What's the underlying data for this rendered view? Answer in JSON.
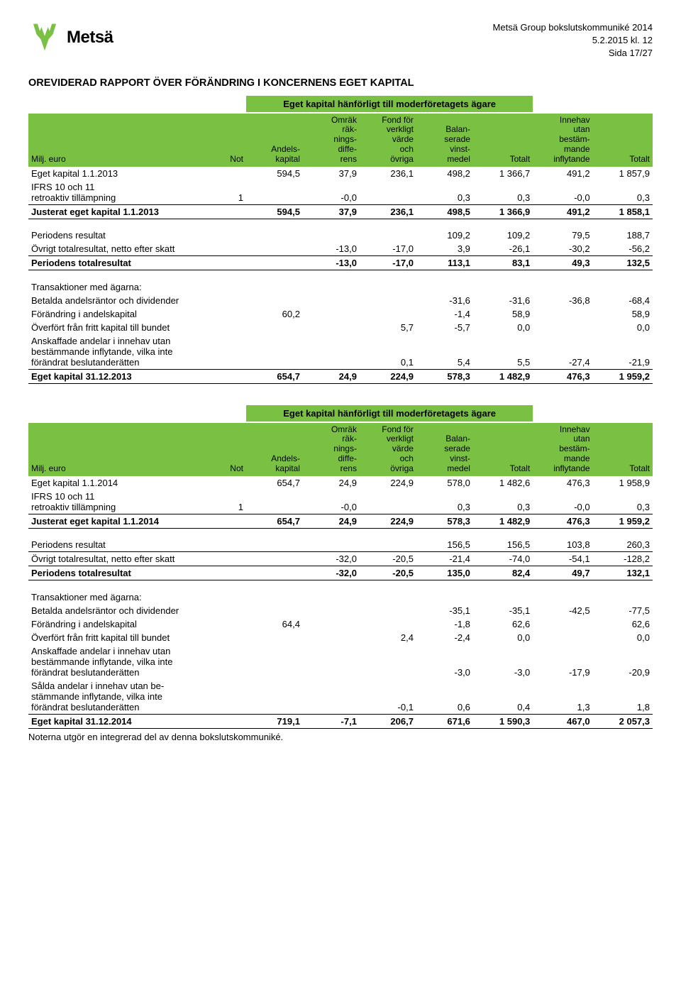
{
  "brand": {
    "name": "Metsä",
    "logo_color": "#7ac143"
  },
  "header": {
    "line1": "Metsä Group bokslutskommuniké 2014",
    "line2": "5.2.2015 kl. 12",
    "line3": "Sida 17/27"
  },
  "title": "OREVIDERAD RAPPORT ÖVER FÖRÄNDRING I KONCERNENS EGET KAPITAL",
  "group_heading": "Eget kapital hänförligt till moderföretagets ägare",
  "columns": {
    "label": "Milj. euro",
    "not": "Not",
    "c1": "Andels-\nkapital",
    "c2": "Omräk\nräk-\nnings-\ndiffe-\nrens",
    "c3": "Fond för\nverkligt\nvärde\noch\növriga",
    "c4": "Balan-\nserade\nvinst-\nmedel",
    "c5": "Totalt",
    "c6": "Innehav\nutan\nbestäm-\nmande\ninflytande",
    "c7": "Totalt"
  },
  "colors": {
    "header_bg": "#7ac143",
    "rule": "#000000",
    "text": "#000000"
  },
  "table2013": {
    "rows": [
      {
        "label": "Eget kapital 1.1.2013",
        "not": "",
        "v": [
          "594,5",
          "37,9",
          "236,1",
          "498,2",
          "1 366,7",
          "491,2",
          "1 857,9"
        ],
        "style": "plain"
      },
      {
        "label": "IFRS 10 och 11\nretroaktiv tillämpning",
        "not": "1",
        "v": [
          "",
          "-0,0",
          "",
          "0,3",
          "0,3",
          "-0,0",
          "0,3"
        ],
        "style": "rule-bottom"
      },
      {
        "label": "Justerat eget kapital 1.1.2013",
        "not": "",
        "v": [
          "594,5",
          "37,9",
          "236,1",
          "498,5",
          "1 366,9",
          "491,2",
          "1 858,1"
        ],
        "style": "bold rule-bottom"
      },
      {
        "gap": true
      },
      {
        "label": "Periodens resultat",
        "not": "",
        "v": [
          "",
          "",
          "",
          "109,2",
          "109,2",
          "79,5",
          "188,7"
        ],
        "style": "plain"
      },
      {
        "label": "Övrigt totalresultat, netto efter skatt",
        "not": "",
        "v": [
          "",
          "-13,0",
          "-17,0",
          "3,9",
          "-26,1",
          "-30,2",
          "-56,2"
        ],
        "style": "rule-bottom"
      },
      {
        "label": "Periodens totalresultat",
        "not": "",
        "v": [
          "",
          "-13,0",
          "-17,0",
          "113,1",
          "83,1",
          "49,3",
          "132,5"
        ],
        "style": "bold rule-bottom"
      },
      {
        "gap": true
      },
      {
        "label": "Transaktioner med ägarna:",
        "not": "",
        "v": [
          "",
          "",
          "",
          "",
          "",
          "",
          ""
        ],
        "style": "plain"
      },
      {
        "label": "Betalda andelsräntor och dividender",
        "not": "",
        "v": [
          "",
          "",
          "",
          "-31,6",
          "-31,6",
          "-36,8",
          "-68,4"
        ],
        "style": "plain"
      },
      {
        "label": "Förändring i andelskapital",
        "not": "",
        "v": [
          "60,2",
          "",
          "",
          "-1,4",
          "58,9",
          "",
          "58,9"
        ],
        "style": "plain"
      },
      {
        "label": "Överfört från fritt kapital till bundet",
        "not": "",
        "v": [
          "",
          "",
          "5,7",
          "-5,7",
          "0,0",
          "",
          "0,0"
        ],
        "style": "plain"
      },
      {
        "label": "Anskaffade andelar i innehav utan\nbestämmande inflytande, vilka inte\nförändrat beslutanderätten",
        "not": "",
        "v": [
          "",
          "",
          "0,1",
          "5,4",
          "5,5",
          "-27,4",
          "-21,9"
        ],
        "style": "rule-bottom"
      },
      {
        "label": "Eget kapital 31.12.2013",
        "not": "",
        "v": [
          "654,7",
          "24,9",
          "224,9",
          "578,3",
          "1 482,9",
          "476,3",
          "1 959,2"
        ],
        "style": "bold rule-bottom"
      }
    ]
  },
  "table2014": {
    "rows": [
      {
        "label": "Eget kapital 1.1.2014",
        "not": "",
        "v": [
          "654,7",
          "24,9",
          "224,9",
          "578,0",
          "1 482,6",
          "476,3",
          "1 958,9"
        ],
        "style": "plain"
      },
      {
        "label": "IFRS 10 och 11\nretroaktiv tillämpning",
        "not": "1",
        "v": [
          "",
          "-0,0",
          "",
          "0,3",
          "0,3",
          "-0,0",
          "0,3"
        ],
        "style": "rule-bottom"
      },
      {
        "label": "Justerat eget kapital 1.1.2014",
        "not": "",
        "v": [
          "654,7",
          "24,9",
          "224,9",
          "578,3",
          "1 482,9",
          "476,3",
          "1 959,2"
        ],
        "style": "bold rule-bottom"
      },
      {
        "gap": true
      },
      {
        "label": "Periodens resultat",
        "not": "",
        "v": [
          "",
          "",
          "",
          "156,5",
          "156,5",
          "103,8",
          "260,3"
        ],
        "style": "rule-bottom"
      },
      {
        "label": "Övrigt totalresultat, netto efter skatt",
        "not": "",
        "v": [
          "",
          "-32,0",
          "-20,5",
          "-21,4",
          "-74,0",
          "-54,1",
          "-128,2"
        ],
        "style": "rule-bottom"
      },
      {
        "label": "Periodens totalresultat",
        "not": "",
        "v": [
          "",
          "-32,0",
          "-20,5",
          "135,0",
          "82,4",
          "49,7",
          "132,1"
        ],
        "style": "bold rule-bottom"
      },
      {
        "gap": true
      },
      {
        "label": "Transaktioner med ägarna:",
        "not": "",
        "v": [
          "",
          "",
          "",
          "",
          "",
          "",
          ""
        ],
        "style": "plain"
      },
      {
        "label": "Betalda andelsräntor och dividender",
        "not": "",
        "v": [
          "",
          "",
          "",
          "-35,1",
          "-35,1",
          "-42,5",
          "-77,5"
        ],
        "style": "plain"
      },
      {
        "label": "Förändring i andelskapital",
        "not": "",
        "v": [
          "64,4",
          "",
          "",
          "-1,8",
          "62,6",
          "",
          "62,6"
        ],
        "style": "plain"
      },
      {
        "label": "Överfört från fritt kapital till bundet",
        "not": "",
        "v": [
          "",
          "",
          "2,4",
          "-2,4",
          "0,0",
          "",
          "0,0"
        ],
        "style": "plain"
      },
      {
        "label": "Anskaffade andelar i innehav utan\nbestämmande inflytande, vilka inte\nförändrat beslutanderätten",
        "not": "",
        "v": [
          "",
          "",
          "",
          "-3,0",
          "-3,0",
          "-17,9",
          "-20,9"
        ],
        "style": "plain"
      },
      {
        "label": "Sålda andelar i innehav utan be-\nstämmande inflytande, vilka inte\nförändrat beslutanderätten",
        "not": "",
        "v": [
          "",
          "",
          "-0,1",
          "0,6",
          "0,4",
          "1,3",
          "1,8"
        ],
        "style": "rule-bottom"
      },
      {
        "label": "Eget kapital 31.12.2014",
        "not": "",
        "v": [
          "719,1",
          "-7,1",
          "206,7",
          "671,6",
          "1 590,3",
          "467,0",
          "2 057,3"
        ],
        "style": "bold rule-bottom"
      }
    ]
  },
  "footnote": "Noterna utgör en integrerad del av denna bokslutskommuniké."
}
